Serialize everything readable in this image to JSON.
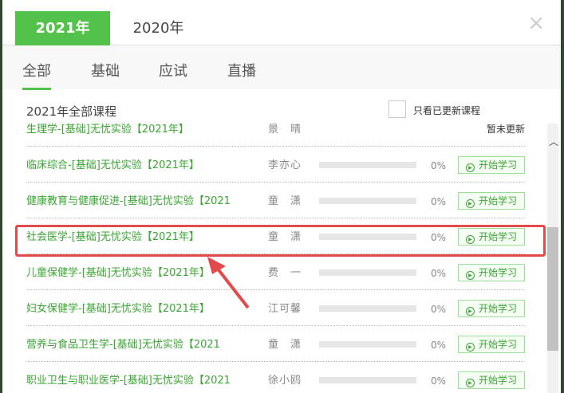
{
  "year_tabs": [
    {
      "label": "2021年",
      "active": true
    },
    {
      "label": "2020年",
      "active": false
    }
  ],
  "close_icon": "×",
  "sub_tabs": [
    {
      "label": "全部",
      "active": true
    },
    {
      "label": "基础"
    },
    {
      "label": "应试"
    },
    {
      "label": "直播"
    }
  ],
  "section_title": "2021年全部课程",
  "filter_label": "只看已更新课程",
  "start_label": "开始学习",
  "accent": "#52c24a",
  "courses": [
    {
      "name": "生理学-[基础]无忧实验【2021年】",
      "teacher": "景　晴",
      "status": "暂未更新"
    },
    {
      "name": "临床综合-[基础]无忧实验【2021年】",
      "teacher": "李亦心",
      "progress": "0%"
    },
    {
      "name": "健康教育与健康促进-[基础]无忧实验【2021",
      "teacher": "童　潇",
      "progress": "0%"
    },
    {
      "name": "社会医学-[基础]无忧实验【2021年】",
      "teacher": "童　潇",
      "progress": "0%",
      "highlighted": true
    },
    {
      "name": "儿童保健学-[基础]无忧实验【2021年】",
      "teacher": "费　一",
      "progress": "0%"
    },
    {
      "name": "妇女保健学-[基础]无忧实验【2021年】",
      "teacher": "江可馨",
      "progress": "0%"
    },
    {
      "name": "营养与食品卫生学-[基础]无忧实验【2021",
      "teacher": "童　潇",
      "progress": "0%"
    },
    {
      "name": "职业卫生与职业医学-[基础]无忧实验【2021",
      "teacher": "徐小鸥",
      "progress": "0%"
    }
  ]
}
